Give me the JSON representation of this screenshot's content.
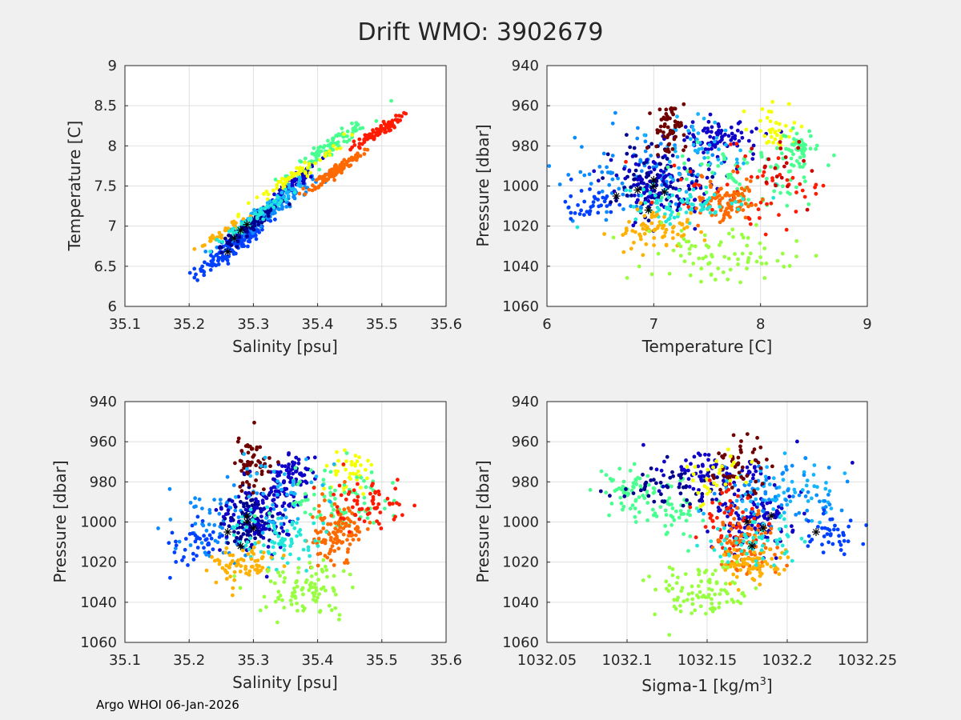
{
  "title": "Drift WMO: 3902679",
  "footer": "Argo WHOI 06-Jan-2026",
  "colors": {
    "palette": [
      "#00008f",
      "#0f00c8",
      "#0040ff",
      "#0a8cff",
      "#14b4ff",
      "#20e8d8",
      "#48ff90",
      "#98ff40",
      "#f4ff00",
      "#ffb000",
      "#ff6a00",
      "#ff1a00",
      "#c80000",
      "#6e0000"
    ],
    "marker_star": "#000000",
    "axes_bg": "#ffffff",
    "grid": "#dfdfdf"
  },
  "chart_data": [
    {
      "id": "ts",
      "type": "scatter",
      "xlabel": "Salinity [psu]",
      "ylabel": "Temperature [C]",
      "xlim": [
        35.1,
        35.6
      ],
      "ylim": [
        6,
        9
      ],
      "yreverse": false,
      "xticks": [
        "35.1",
        "35.2",
        "35.3",
        "35.4",
        "35.5",
        "35.6"
      ],
      "yticks": [
        "6",
        "6.5",
        "7",
        "7.5",
        "8",
        "8.5",
        "9"
      ],
      "grid": true,
      "clusters": [
        {
          "color": 2,
          "cx": 35.27,
          "cy": 6.75,
          "sx": 0.03,
          "sy": 0.25,
          "n": 140,
          "kind": "line",
          "slope": 5.8
        },
        {
          "color": 3,
          "cx": 35.33,
          "cy": 7.2,
          "sx": 0.03,
          "sy": 0.2,
          "n": 110,
          "kind": "line",
          "slope": 5.5
        },
        {
          "color": 0,
          "cx": 35.3,
          "cy": 7.05,
          "sx": 0.025,
          "sy": 0.18,
          "n": 110,
          "kind": "line",
          "slope": 6.0
        },
        {
          "color": 1,
          "cx": 35.36,
          "cy": 7.5,
          "sx": 0.02,
          "sy": 0.2,
          "n": 100,
          "kind": "line",
          "slope": 6.5
        },
        {
          "color": 6,
          "cx": 35.42,
          "cy": 8.0,
          "sx": 0.03,
          "sy": 0.2,
          "n": 100,
          "kind": "line",
          "slope": 5.5
        },
        {
          "color": 8,
          "cx": 35.36,
          "cy": 7.6,
          "sx": 0.04,
          "sy": 0.2,
          "n": 60,
          "kind": "line",
          "slope": 5.5
        },
        {
          "color": 10,
          "cx": 35.43,
          "cy": 7.7,
          "sx": 0.02,
          "sy": 0.15,
          "n": 120,
          "kind": "line",
          "slope": 5.2
        },
        {
          "color": 11,
          "cx": 35.49,
          "cy": 8.15,
          "sx": 0.02,
          "sy": 0.15,
          "n": 80,
          "kind": "line",
          "slope": 5.0
        },
        {
          "color": 4,
          "cx": 35.33,
          "cy": 7.3,
          "sx": 0.03,
          "sy": 0.15,
          "n": 50,
          "kind": "line",
          "slope": 5.5
        },
        {
          "color": 9,
          "cx": 35.25,
          "cy": 6.9,
          "sx": 0.02,
          "sy": 0.12,
          "n": 30,
          "kind": "line",
          "slope": 5.5
        },
        {
          "color": 5,
          "cx": 35.3,
          "cy": 7.1,
          "sx": 0.03,
          "sy": 0.15,
          "n": 50,
          "kind": "line",
          "slope": 5.5
        }
      ],
      "stars": [
        [
          35.27,
          6.85
        ],
        [
          35.26,
          6.68
        ],
        [
          35.29,
          7.02
        ],
        [
          35.28,
          6.95
        ]
      ]
    },
    {
      "id": "pt",
      "type": "scatter",
      "xlabel": "Temperature [C]",
      "ylabel": "Pressure [dbar]",
      "xlim": [
        6,
        9
      ],
      "ylim": [
        940,
        1060
      ],
      "yreverse": true,
      "xticks": [
        "6",
        "7",
        "8",
        "9"
      ],
      "yticks": [
        "940",
        "960",
        "980",
        "1000",
        "1020",
        "1040",
        "1060"
      ],
      "grid": true,
      "clusters": [
        {
          "color": 3,
          "cx": 6.8,
          "cy": 995,
          "sx": 0.35,
          "sy": 10,
          "n": 90
        },
        {
          "color": 2,
          "cx": 6.5,
          "cy": 1008,
          "sx": 0.2,
          "sy": 4,
          "n": 40
        },
        {
          "color": 0,
          "cx": 7.0,
          "cy": 998,
          "sx": 0.2,
          "sy": 8,
          "n": 90
        },
        {
          "color": 1,
          "cx": 7.1,
          "cy": 998,
          "sx": 0.25,
          "sy": 9,
          "n": 110
        },
        {
          "color": 1,
          "cx": 7.6,
          "cy": 975,
          "sx": 0.2,
          "sy": 5,
          "n": 80
        },
        {
          "color": 4,
          "cx": 7.4,
          "cy": 982,
          "sx": 0.2,
          "sy": 8,
          "n": 50
        },
        {
          "color": 13,
          "cx": 7.15,
          "cy": 972,
          "sx": 0.07,
          "sy": 7,
          "n": 60
        },
        {
          "color": 8,
          "cx": 8.1,
          "cy": 972,
          "sx": 0.1,
          "sy": 6,
          "n": 40
        },
        {
          "color": 6,
          "cx": 7.85,
          "cy": 993,
          "sx": 0.3,
          "sy": 8,
          "n": 70
        },
        {
          "color": 6,
          "cx": 8.35,
          "cy": 982,
          "sx": 0.08,
          "sy": 5,
          "n": 50
        },
        {
          "color": 11,
          "cx": 7.9,
          "cy": 1003,
          "sx": 0.35,
          "sy": 10,
          "n": 60
        },
        {
          "color": 10,
          "cx": 7.7,
          "cy": 1008,
          "sx": 0.15,
          "sy": 6,
          "n": 90
        },
        {
          "color": 5,
          "cx": 7.3,
          "cy": 1010,
          "sx": 0.3,
          "sy": 5,
          "n": 80
        },
        {
          "color": 9,
          "cx": 7.0,
          "cy": 1022,
          "sx": 0.2,
          "sy": 5,
          "n": 70
        },
        {
          "color": 7,
          "cx": 7.6,
          "cy": 1035,
          "sx": 0.35,
          "sy": 7,
          "n": 80
        },
        {
          "color": 12,
          "cx": 8.2,
          "cy": 990,
          "sx": 0.15,
          "sy": 8,
          "n": 20
        }
      ],
      "stars": [
        [
          6.65,
          1005
        ],
        [
          6.85,
          1002
        ],
        [
          6.95,
          1012
        ],
        [
          7.0,
          1000
        ],
        [
          7.1,
          1003
        ],
        [
          7.0,
          997
        ]
      ]
    },
    {
      "id": "ps",
      "type": "scatter",
      "xlabel": "Salinity [psu]",
      "ylabel": "Pressure [dbar]",
      "xlim": [
        35.1,
        35.6
      ],
      "ylim": [
        940,
        1060
      ],
      "yreverse": true,
      "xticks": [
        "35.1",
        "35.2",
        "35.3",
        "35.4",
        "35.5",
        "35.6"
      ],
      "yticks": [
        "940",
        "960",
        "980",
        "1000",
        "1020",
        "1040",
        "1060"
      ],
      "grid": true,
      "clusters": [
        {
          "color": 3,
          "cx": 35.25,
          "cy": 1000,
          "sx": 0.04,
          "sy": 10,
          "n": 70
        },
        {
          "color": 2,
          "cx": 35.21,
          "cy": 1010,
          "sx": 0.02,
          "sy": 5,
          "n": 40
        },
        {
          "color": 0,
          "cx": 35.29,
          "cy": 1000,
          "sx": 0.02,
          "sy": 8,
          "n": 100
        },
        {
          "color": 1,
          "cx": 35.31,
          "cy": 995,
          "sx": 0.03,
          "sy": 9,
          "n": 110
        },
        {
          "color": 1,
          "cx": 35.36,
          "cy": 978,
          "sx": 0.015,
          "sy": 6,
          "n": 80
        },
        {
          "color": 13,
          "cx": 35.3,
          "cy": 972,
          "sx": 0.015,
          "sy": 7,
          "n": 60
        },
        {
          "color": 8,
          "cx": 35.45,
          "cy": 975,
          "sx": 0.02,
          "sy": 6,
          "n": 40
        },
        {
          "color": 6,
          "cx": 35.42,
          "cy": 990,
          "sx": 0.04,
          "sy": 8,
          "n": 80
        },
        {
          "color": 10,
          "cx": 35.43,
          "cy": 1005,
          "sx": 0.02,
          "sy": 8,
          "n": 110
        },
        {
          "color": 11,
          "cx": 35.48,
          "cy": 990,
          "sx": 0.03,
          "sy": 8,
          "n": 60
        },
        {
          "color": 5,
          "cx": 35.35,
          "cy": 1008,
          "sx": 0.04,
          "sy": 6,
          "n": 80
        },
        {
          "color": 9,
          "cx": 35.28,
          "cy": 1020,
          "sx": 0.03,
          "sy": 5,
          "n": 70
        },
        {
          "color": 7,
          "cx": 35.38,
          "cy": 1035,
          "sx": 0.04,
          "sy": 7,
          "n": 90
        },
        {
          "color": 4,
          "cx": 35.33,
          "cy": 985,
          "sx": 0.03,
          "sy": 8,
          "n": 40
        }
      ],
      "stars": [
        [
          35.26,
          1005
        ],
        [
          35.28,
          1012
        ],
        [
          35.29,
          1000
        ],
        [
          35.3,
          1003
        ],
        [
          35.29,
          997
        ]
      ]
    },
    {
      "id": "psig",
      "type": "scatter",
      "xlabel": "Sigma-1 [kg/m",
      "xlabel_sup": "3",
      "xlabel_tail": "]",
      "ylabel": "Pressure [dbar]",
      "xlim": [
        1032.05,
        1032.25
      ],
      "ylim": [
        940,
        1060
      ],
      "yreverse": true,
      "xticks": [
        "1032.05",
        "1032.1",
        "1032.15",
        "1032.2",
        "1032.25"
      ],
      "yticks": [
        "940",
        "960",
        "980",
        "1000",
        "1020",
        "1040",
        "1060"
      ],
      "grid": true,
      "clusters": [
        {
          "color": 6,
          "cx": 1032.105,
          "cy": 985,
          "sx": 0.01,
          "sy": 6,
          "n": 70
        },
        {
          "color": 6,
          "cx": 1032.13,
          "cy": 995,
          "sx": 0.01,
          "sy": 7,
          "n": 40
        },
        {
          "color": 0,
          "cx": 1032.13,
          "cy": 982,
          "sx": 0.02,
          "sy": 6,
          "n": 60
        },
        {
          "color": 1,
          "cx": 1032.155,
          "cy": 975,
          "sx": 0.02,
          "sy": 5,
          "n": 80
        },
        {
          "color": 1,
          "cx": 1032.18,
          "cy": 998,
          "sx": 0.012,
          "sy": 9,
          "n": 120
        },
        {
          "color": 4,
          "cx": 1032.19,
          "cy": 985,
          "sx": 0.02,
          "sy": 8,
          "n": 70
        },
        {
          "color": 3,
          "cx": 1032.2,
          "cy": 985,
          "sx": 0.02,
          "sy": 7,
          "n": 50
        },
        {
          "color": 2,
          "cx": 1032.23,
          "cy": 1005,
          "sx": 0.008,
          "sy": 5,
          "n": 40
        },
        {
          "color": 13,
          "cx": 1032.17,
          "cy": 972,
          "sx": 0.01,
          "sy": 7,
          "n": 50
        },
        {
          "color": 8,
          "cx": 1032.155,
          "cy": 980,
          "sx": 0.01,
          "sy": 7,
          "n": 30
        },
        {
          "color": 11,
          "cx": 1032.165,
          "cy": 998,
          "sx": 0.01,
          "sy": 8,
          "n": 50
        },
        {
          "color": 10,
          "cx": 1032.175,
          "cy": 1012,
          "sx": 0.01,
          "sy": 7,
          "n": 90
        },
        {
          "color": 9,
          "cx": 1032.178,
          "cy": 1022,
          "sx": 0.01,
          "sy": 5,
          "n": 70
        },
        {
          "color": 5,
          "cx": 1032.18,
          "cy": 1010,
          "sx": 0.015,
          "sy": 6,
          "n": 60
        },
        {
          "color": 7,
          "cx": 1032.145,
          "cy": 1035,
          "sx": 0.015,
          "sy": 7,
          "n": 90
        }
      ],
      "stars": [
        [
          1032.175,
          1000
        ],
        [
          1032.185,
          1003
        ],
        [
          1032.218,
          1005
        ],
        [
          1032.178,
          1012
        ],
        [
          1032.19,
          997
        ]
      ]
    }
  ]
}
